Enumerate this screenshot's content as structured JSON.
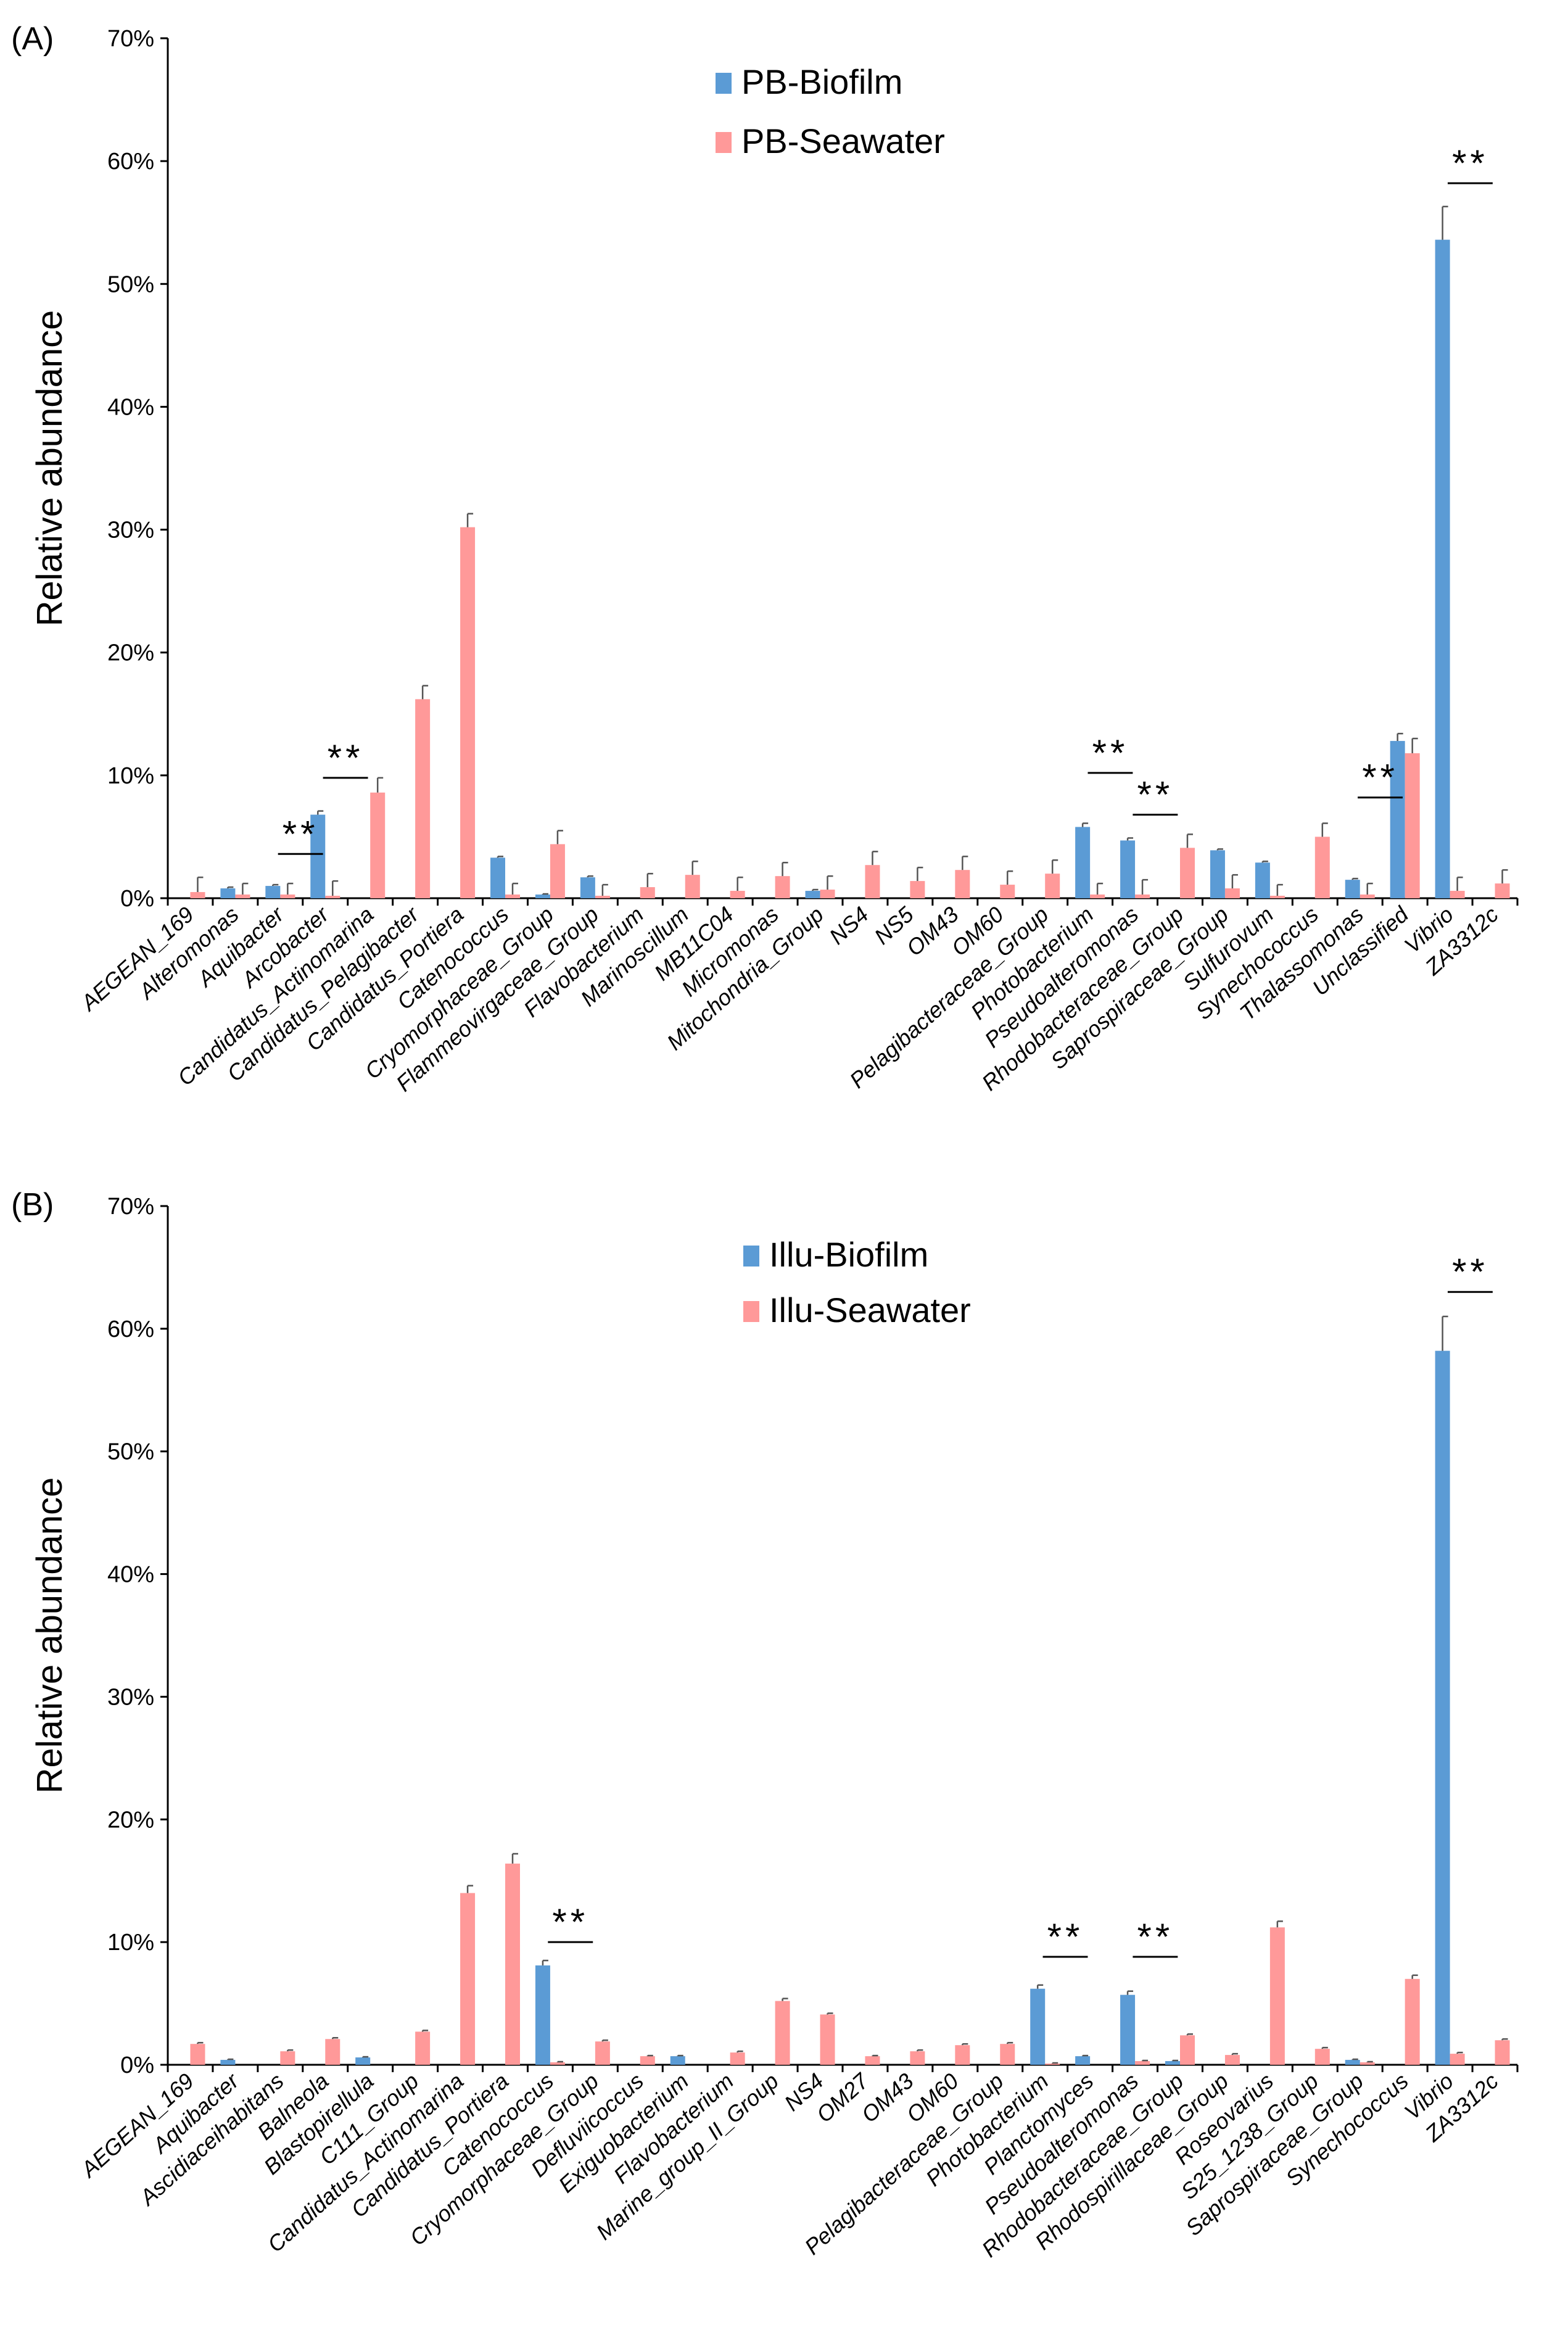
{
  "chart_data": [
    {
      "panel": "(A)",
      "type": "bar",
      "ylabel": "Relative abundance",
      "ylim": [
        0,
        70
      ],
      "yticks": [
        "0%",
        "10%",
        "20%",
        "30%",
        "40%",
        "50%",
        "60%",
        "70%"
      ],
      "categories": [
        "AEGEAN_169",
        "Alteromonas",
        "Aquibacter",
        "Arcobacter",
        "Candidatus_Actinomarina",
        "Candidatus_Pelagibacter",
        "Candidatus_Portiera",
        "Catenococcus",
        "Cryomorphaceae_Group",
        "Flammeovirgaceae_Group",
        "Flavobacterium",
        "Marinoscillum",
        "MB11C04",
        "Micromonas",
        "Mitochondria_Group",
        "NS4",
        "NS5",
        "OM43",
        "OM60",
        "Pelagibacteraceae_Group",
        "Photobacterium",
        "Pseudoalteromonas",
        "Rhodobacteraceae_Group",
        "Saprospiraceae_Group",
        "Sulfurovum",
        "Synechococcus",
        "Thalassomonas",
        "Unclassified",
        "Vibrio",
        "ZA3312c"
      ],
      "series": [
        {
          "name": "PB-Biofilm",
          "color": "#5b9bd5",
          "values": [
            0,
            0.8,
            1.0,
            6.8,
            0,
            0,
            0,
            3.3,
            0.3,
            1.7,
            0,
            0,
            0,
            0,
            0.6,
            0,
            0,
            0,
            0,
            0,
            5.8,
            4.7,
            0,
            3.9,
            2.9,
            0,
            1.5,
            12.8,
            53.6,
            0
          ],
          "errors": [
            0,
            0.1,
            0.1,
            0.3,
            0,
            0,
            0,
            0.1,
            0.05,
            0.1,
            0,
            0,
            0,
            0,
            0.1,
            0,
            0,
            0,
            0,
            0,
            0.3,
            0.2,
            0,
            0.1,
            0.1,
            0,
            0.1,
            0.6,
            2.7,
            0
          ]
        },
        {
          "name": "PB-Seawater",
          "color": "#ff9999",
          "values": [
            0.5,
            0.3,
            0.3,
            0.2,
            8.6,
            16.2,
            30.2,
            0.3,
            4.4,
            0.2,
            0.9,
            1.9,
            0.6,
            1.8,
            0.7,
            2.7,
            1.4,
            2.3,
            1.1,
            2.0,
            0.3,
            0.3,
            4.1,
            0.8,
            0.2,
            5.0,
            0.3,
            11.8,
            0.6,
            1.2
          ],
          "errors": [
            1.2,
            0.9,
            0.9,
            1.2,
            1.2,
            1.1,
            1.1,
            0.9,
            1.1,
            0.9,
            1.1,
            1.1,
            1.1,
            1.1,
            1.1,
            1.1,
            1.1,
            1.1,
            1.1,
            1.1,
            0.9,
            1.2,
            1.1,
            1.1,
            0.9,
            1.1,
            0.9,
            1.2,
            1.1,
            1.1
          ]
        }
      ],
      "significance": [
        {
          "label": "**",
          "from": 2,
          "to": 3,
          "level": 3.6
        },
        {
          "label": "**",
          "from": 3,
          "to": 4,
          "level": 9.8
        },
        {
          "label": "**",
          "from": 20,
          "to": 21,
          "level": 10.2
        },
        {
          "label": "**",
          "from": 21,
          "to": 22,
          "level": 6.8
        },
        {
          "label": "**",
          "from": 26,
          "to": 27,
          "level": 8.2
        },
        {
          "label": "**",
          "from": 28,
          "to": 29,
          "level": 58.2
        }
      ]
    },
    {
      "panel": "(B)",
      "type": "bar",
      "ylabel": "Relative abundance",
      "ylim": [
        0,
        70
      ],
      "yticks": [
        "0%",
        "10%",
        "20%",
        "30%",
        "40%",
        "50%",
        "60%",
        "70%"
      ],
      "categories": [
        "AEGEAN_169",
        "Aquibacter",
        "Ascidiaceihabitans",
        "Balneola",
        "Blastopirellula",
        "C111_Group",
        "Candidatus_Actinomarina",
        "Candidatus_Portiera",
        "Catenococcus",
        "Cryomorphaceae_Group",
        "Defluviicoccus",
        "Exiguobacterium",
        "Flavobacterium",
        "Marine_group_II_Group",
        "NS4",
        "OM27",
        "OM43",
        "OM60",
        "Pelagibacteraceae_Group",
        "Photobacterium",
        "Planctomyces",
        "Pseudoalteromonas",
        "Rhodobacteraceae_Group",
        "Rhodospirillaceae_Group",
        "Roseovarius",
        "S25_1238_Group",
        "Saprospiraceae_Group",
        "Synechococcus",
        "Vibrio",
        "ZA3312c"
      ],
      "series": [
        {
          "name": "Illu-Biofilm",
          "color": "#5b9bd5",
          "values": [
            0,
            0.4,
            0,
            0,
            0.6,
            0,
            0,
            0,
            8.1,
            0,
            0,
            0.7,
            0,
            0,
            0,
            0,
            0,
            0,
            0,
            6.2,
            0.7,
            5.7,
            0.3,
            0,
            0,
            0,
            0.4,
            0,
            58.2,
            0
          ],
          "errors": [
            0,
            0.05,
            0,
            0,
            0.05,
            0,
            0,
            0,
            0.4,
            0,
            0,
            0.05,
            0,
            0,
            0,
            0,
            0,
            0,
            0,
            0.3,
            0.05,
            0.3,
            0.05,
            0,
            0,
            0,
            0.05,
            0,
            2.8,
            0
          ]
        },
        {
          "name": "Illu-Seawater",
          "color": "#ff9999",
          "values": [
            1.7,
            0,
            1.1,
            2.1,
            0,
            2.7,
            14.0,
            16.4,
            0.2,
            1.9,
            0.7,
            0,
            1.0,
            5.2,
            4.1,
            0.7,
            1.1,
            1.6,
            1.7,
            0.1,
            0,
            0.3,
            2.4,
            0.8,
            11.2,
            1.3,
            0.2,
            7.0,
            0.9,
            2.0
          ],
          "errors": [
            0.1,
            0,
            0.1,
            0.1,
            0,
            0.1,
            0.6,
            0.8,
            0.05,
            0.1,
            0.05,
            0,
            0.1,
            0.2,
            0.1,
            0.05,
            0.1,
            0.1,
            0.1,
            0.05,
            0,
            0.05,
            0.1,
            0.1,
            0.5,
            0.1,
            0.05,
            0.3,
            0.1,
            0.1
          ]
        }
      ],
      "significance": [
        {
          "label": "**",
          "from": 8,
          "to": 9,
          "level": 10.0
        },
        {
          "label": "**",
          "from": 19,
          "to": 20,
          "level": 8.8
        },
        {
          "label": "**",
          "from": 21,
          "to": 22,
          "level": 8.8
        },
        {
          "label": "**",
          "from": 28,
          "to": 29,
          "level": 63.0
        }
      ]
    }
  ]
}
